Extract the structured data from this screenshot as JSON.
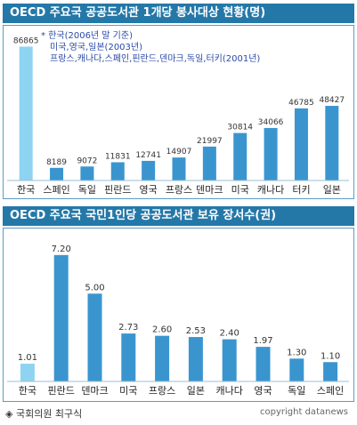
{
  "charts": [
    {
      "title": "OECD 주요국 공공도서관 1개당 봉사대상 현황(명)",
      "notes": [
        "* 한국(2006년 말 기준)",
        "미국,영국,일본(2003년)",
        "프랑스,캐나다,스페인,핀란드,덴마크,독일,터키(2001년)"
      ],
      "chart_data": {
        "type": "bar",
        "categories": [
          "한국",
          "스페인",
          "독일",
          "핀란드",
          "영국",
          "프랑스",
          "덴마크",
          "미국",
          "캐나다",
          "터키",
          "일본"
        ],
        "values": [
          86865,
          8189,
          9072,
          11831,
          12741,
          14907,
          21997,
          30814,
          34066,
          46785,
          48427
        ],
        "value_labels": [
          "86865",
          "8189",
          "9072",
          "11831",
          "12741",
          "14907",
          "21997",
          "30814",
          "34066",
          "46785",
          "48427"
        ],
        "highlight_index": 0,
        "ylim": [
          0,
          90000
        ],
        "colors": {
          "highlight": "#8fd3f2",
          "bar": "#3a95cf"
        }
      }
    },
    {
      "title": "OECD 주요국 국민1인당 공공도서관 보유 장서수(권)",
      "chart_data": {
        "type": "bar",
        "categories": [
          "한국",
          "핀란드",
          "덴마크",
          "미국",
          "프랑스",
          "일본",
          "캐나다",
          "영국",
          "독일",
          "스페인"
        ],
        "values": [
          1.01,
          7.2,
          5.0,
          2.73,
          2.6,
          2.53,
          2.4,
          1.97,
          1.3,
          1.1
        ],
        "value_labels": [
          "1.01",
          "7.20",
          "5.00",
          "2.73",
          "2.60",
          "2.53",
          "2.40",
          "1.97",
          "1.30",
          "1.10"
        ],
        "highlight_index": 0,
        "ylim": [
          0,
          7.8
        ],
        "colors": {
          "highlight": "#8fd3f2",
          "bar": "#3a95cf"
        }
      }
    }
  ],
  "footer": {
    "source": "◈ 국회의원 최구식",
    "copyright": "copyright datanews"
  },
  "colors": {
    "title_bg": "#2478a8",
    "border": "#5a9cc6"
  }
}
